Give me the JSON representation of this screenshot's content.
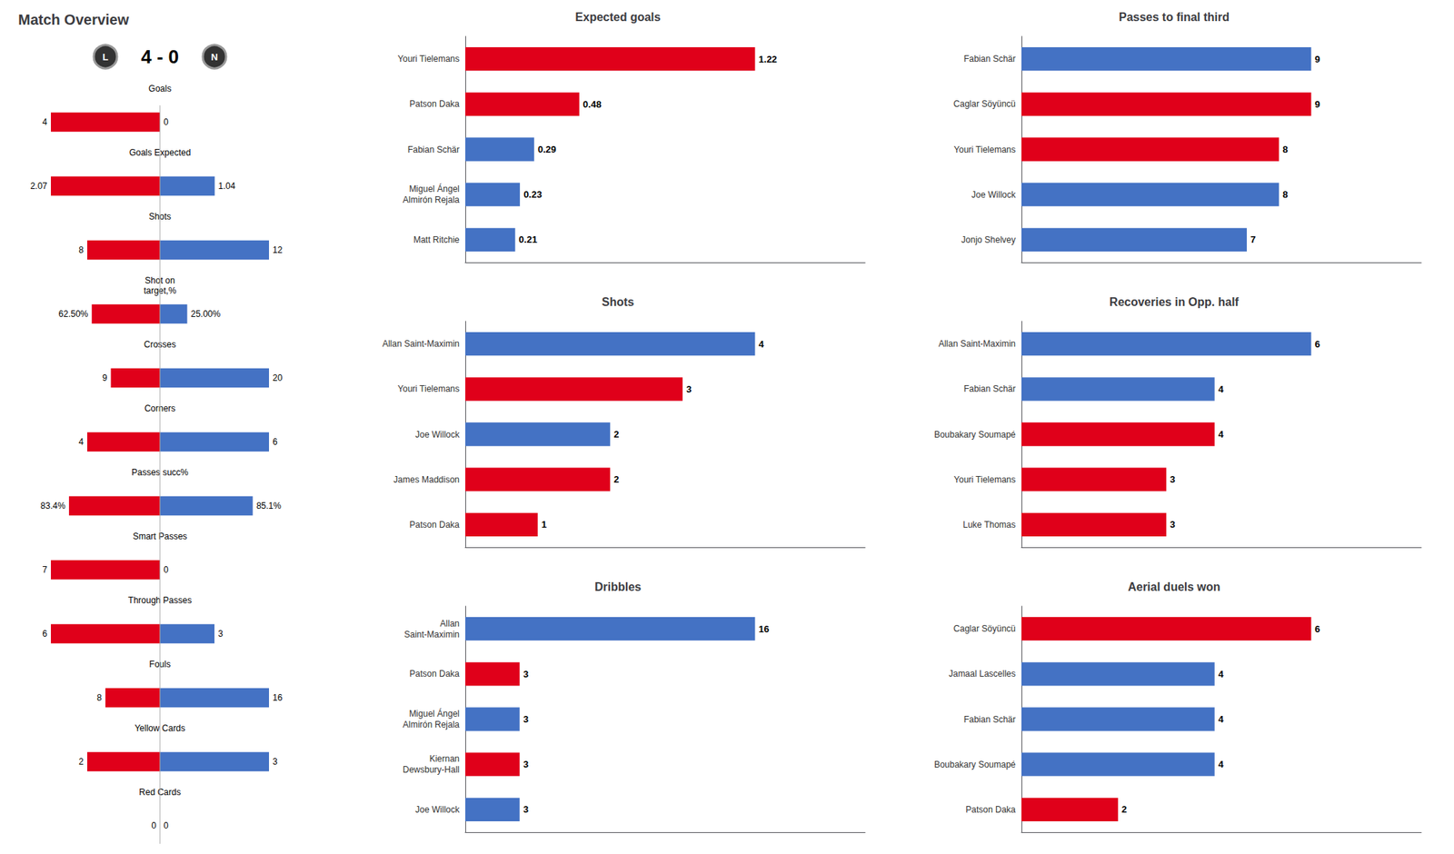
{
  "chart_data": [
    {
      "type": "bar",
      "orientation": "horizontal",
      "title": "Match Overview",
      "annotations": [
        "L",
        "4 - 0",
        "N"
      ],
      "categories": [
        "Goals",
        "Goals Expected",
        "Shots",
        "Shot on\ntarget,%",
        "Crosses",
        "Corners",
        "Passes succ%",
        "Smart Passes",
        "Through Passes",
        "Fouls",
        "Yellow Cards",
        "Red Cards"
      ],
      "scale_max": [
        4,
        2.07,
        12,
        100,
        20,
        6,
        100,
        7,
        6,
        16,
        3,
        1
      ],
      "series": [
        {
          "color": "#E0001A",
          "values": [
            4,
            2.07,
            8,
            62.5,
            9,
            4,
            83.4,
            7,
            6,
            8,
            2,
            0
          ],
          "value_labels": [
            "4",
            "2.07",
            "8",
            "62.50%",
            "9",
            "4",
            "83.4%",
            "7",
            "6",
            "8",
            "2",
            "0"
          ]
        },
        {
          "color": "#4472C4",
          "values": [
            0,
            1.04,
            12,
            25.0,
            20,
            6,
            85.1,
            0,
            3,
            16,
            3,
            0
          ],
          "value_labels": [
            "0",
            "1.04",
            "12",
            "25.00%",
            "20",
            "6",
            "85.1%",
            "0",
            "3",
            "16",
            "3",
            "0"
          ]
        }
      ],
      "data_labels": true,
      "tick_labels": false,
      "grid": false
    },
    {
      "type": "bar",
      "orientation": "horizontal",
      "title": "Expected goals",
      "categories": [
        "Youri Tielemans",
        "Patson Daka",
        "Fabian Schär",
        "Miguel Ángel\nAlmirón Rejala",
        "Matt Ritchie"
      ],
      "values": [
        1.22,
        0.48,
        0.29,
        0.23,
        0.21
      ],
      "colors": [
        "#E0001A",
        "#E0001A",
        "#4472C4",
        "#4472C4",
        "#4472C4"
      ],
      "xlim": [
        0,
        1.6836
      ],
      "data_labels": true,
      "tick_labels": "y",
      "grid": false
    },
    {
      "type": "bar",
      "orientation": "horizontal",
      "title": "Passes to final third",
      "categories": [
        "Fabian Schär",
        "Caglar Söyüncü",
        "Youri Tielemans",
        "Joe Willock",
        "Jonjo Shelvey"
      ],
      "values": [
        9,
        9,
        8,
        8,
        7
      ],
      "colors": [
        "#4472C4",
        "#E0001A",
        "#E0001A",
        "#4472C4",
        "#4472C4"
      ],
      "xlim": [
        0,
        12.42
      ],
      "data_labels": true,
      "tick_labels": "y",
      "grid": false
    },
    {
      "type": "bar",
      "orientation": "horizontal",
      "title": "Shots",
      "categories": [
        "Allan Saint-Maximin",
        "Youri Tielemans",
        "Joe Willock",
        "James Maddison",
        "Patson Daka"
      ],
      "values": [
        4,
        3,
        2,
        2,
        1
      ],
      "colors": [
        "#4472C4",
        "#E0001A",
        "#4472C4",
        "#E0001A",
        "#E0001A"
      ],
      "xlim": [
        0,
        5.52
      ],
      "data_labels": true,
      "tick_labels": "y",
      "grid": false
    },
    {
      "type": "bar",
      "orientation": "horizontal",
      "title": "Recoveries in Opp. half",
      "categories": [
        "Allan Saint-Maximin",
        "Fabian Schär",
        "Boubakary Soumарé",
        "Youri Tielemans",
        "Luke Thomas"
      ],
      "values": [
        6,
        4,
        4,
        3,
        3
      ],
      "colors": [
        "#4472C4",
        "#4472C4",
        "#E0001A",
        "#E0001A",
        "#E0001A"
      ],
      "xlim": [
        0,
        8.28
      ],
      "data_labels": true,
      "tick_labels": "y",
      "grid": false
    },
    {
      "type": "bar",
      "orientation": "horizontal",
      "title": "Dribbles",
      "categories": [
        "Allan\nSaint-Maximin",
        "Patson Daka",
        "Miguel Ángel\nAlmirón Rejala",
        "Kiernan\nDewsbury-Hall",
        "Joe Willock"
      ],
      "values": [
        16,
        3,
        3,
        3,
        3
      ],
      "colors": [
        "#4472C4",
        "#E0001A",
        "#4472C4",
        "#E0001A",
        "#4472C4"
      ],
      "xlim": [
        0,
        22.08
      ],
      "data_labels": true,
      "tick_labels": "y",
      "grid": false
    },
    {
      "type": "bar",
      "orientation": "horizontal",
      "title": "Aerial duels won",
      "categories": [
        "Caglar Söyüncü",
        "Jamaal Lascelles",
        "Fabian Schär",
        "Boubakary Soumарé",
        "Patson Daka"
      ],
      "values": [
        6,
        4,
        4,
        4,
        2
      ],
      "colors": [
        "#E0001A",
        "#4472C4",
        "#4472C4",
        "#4472C4",
        "#E0001A"
      ],
      "xlim": [
        0,
        8.28
      ],
      "data_labels": true,
      "tick_labels": "y",
      "grid": false
    }
  ]
}
